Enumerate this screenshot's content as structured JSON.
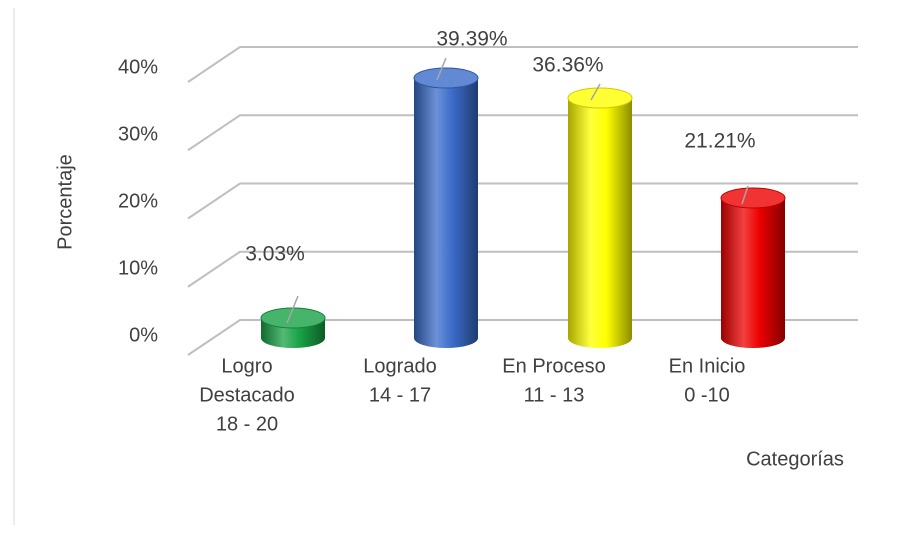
{
  "chart_data": {
    "type": "cylinder-bar",
    "y_axis_label": "Porcentaje",
    "x_axis_label": "Categorías",
    "categories": [
      [
        "Logro",
        "Destacado",
        "18 - 20"
      ],
      [
        "Logrado",
        "14 - 17"
      ],
      [
        "En Proceso",
        "11 - 13"
      ],
      [
        "En Inicio",
        "0 -10"
      ]
    ],
    "values": [
      3.03,
      39.39,
      36.36,
      21.21
    ],
    "value_labels": [
      "3.03%",
      "39.39%",
      "36.36%",
      "21.21%"
    ],
    "colors": [
      "#18a346",
      "#3b6cc9",
      "#ffff00",
      "#ee0000"
    ],
    "ylim": [
      0,
      40
    ],
    "yticks": [
      {
        "value": 0,
        "label": "0%"
      },
      {
        "value": 10,
        "label": "10%"
      },
      {
        "value": 20,
        "label": "20%"
      },
      {
        "value": 30,
        "label": "30%"
      },
      {
        "value": 40,
        "label": "40%"
      }
    ],
    "grid": true
  }
}
